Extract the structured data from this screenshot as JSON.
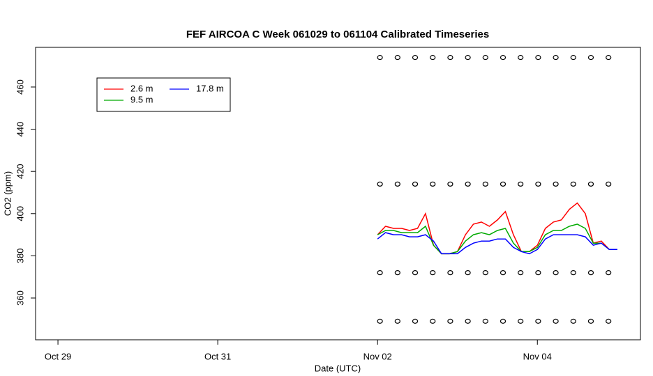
{
  "chart_data": {
    "type": "line",
    "title": "FEF AIRCOA C  Week 061029 to 061104  Calibrated Timeseries",
    "x_label": "Date (UTC)",
    "y_label": "CO2 (ppm)",
    "xlim": [
      -0.28,
      7.29
    ],
    "ylim": [
      340.2,
      478.8
    ],
    "xticks": [
      {
        "value": 0,
        "label": "Oct 29"
      },
      {
        "value": 2,
        "label": "Oct 31"
      },
      {
        "value": 4,
        "label": "Nov 02"
      },
      {
        "value": 6,
        "label": "Nov 04"
      }
    ],
    "yticks": [
      360,
      380,
      400,
      420,
      440,
      460
    ],
    "grid": false,
    "legend": "top-left",
    "x": [
      4.0,
      4.1,
      4.2,
      4.3,
      4.4,
      4.5,
      4.6,
      4.7,
      4.8,
      4.9,
      5.0,
      5.1,
      5.2,
      5.3,
      5.4,
      5.5,
      5.6,
      5.7,
      5.8,
      5.9,
      6.0,
      6.1,
      6.2,
      6.3,
      6.4,
      6.5,
      6.6,
      6.7,
      6.8,
      6.9,
      7.0
    ],
    "series": [
      {
        "name": "2.6 m",
        "color": "#ff0000",
        "values": [
          390,
          394,
          393,
          393,
          392,
          393,
          400,
          385,
          381,
          381,
          382,
          390,
          395,
          396,
          394,
          397,
          401,
          390,
          382,
          382,
          385,
          393,
          396,
          397,
          402,
          405,
          400,
          386,
          387,
          383,
          383
        ]
      },
      {
        "name": "9.5 m",
        "color": "#00aa00",
        "values": [
          390,
          392,
          392,
          391,
          391,
          391,
          394,
          385,
          381,
          381,
          382,
          387,
          390,
          391,
          390,
          392,
          393,
          386,
          382,
          382,
          384,
          390,
          392,
          392,
          394,
          395,
          393,
          386,
          386,
          383,
          383
        ]
      },
      {
        "name": "17.8 m",
        "color": "#0000ff",
        "values": [
          388,
          391,
          390,
          390,
          389,
          389,
          390,
          387,
          381,
          381,
          381,
          384,
          386,
          387,
          387,
          388,
          388,
          384,
          382,
          381,
          383,
          388,
          390,
          390,
          390,
          390,
          389,
          385,
          386,
          383,
          383
        ]
      }
    ],
    "standards": {
      "color": "#000000",
      "x": [
        4.03,
        4.25,
        4.47,
        4.69,
        4.91,
        5.13,
        5.35,
        5.57,
        5.79,
        6.01,
        6.23,
        6.45,
        6.67,
        6.89
      ],
      "values": [
        [
          474,
          474,
          474,
          474,
          474,
          474,
          474,
          474,
          474,
          474,
          474,
          474,
          474,
          474
        ],
        [
          414,
          414,
          414,
          414,
          414,
          414,
          414,
          414,
          414,
          414,
          414,
          414,
          414,
          414
        ],
        [
          372,
          372,
          372,
          372,
          372,
          372,
          372,
          372,
          372,
          372,
          372,
          372,
          372,
          372
        ],
        [
          349,
          349,
          349,
          349,
          349,
          349,
          349,
          349,
          349,
          349,
          349,
          349,
          349,
          349
        ]
      ]
    }
  }
}
